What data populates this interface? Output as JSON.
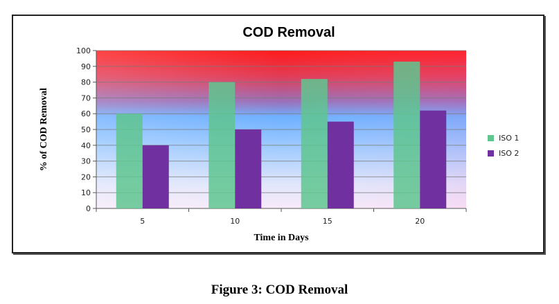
{
  "chart_data": {
    "type": "bar",
    "title": "COD Removal",
    "xlabel": "Time in Days",
    "ylabel": "% of COD Removal",
    "categories": [
      "5",
      "10",
      "15",
      "20"
    ],
    "series": [
      {
        "name": "ISO 1",
        "values": [
          60,
          80,
          82,
          93
        ],
        "color": "#5fc68f"
      },
      {
        "name": "ISO 2",
        "values": [
          40,
          50,
          55,
          62
        ],
        "color": "#7030a0"
      }
    ],
    "ylim": [
      0,
      100
    ],
    "yticks": [
      "0",
      "10",
      "20",
      "30",
      "40",
      "50",
      "60",
      "70",
      "80",
      "90",
      "100"
    ],
    "grid": true,
    "legend": "right"
  },
  "caption": "Figure 3: COD Removal"
}
